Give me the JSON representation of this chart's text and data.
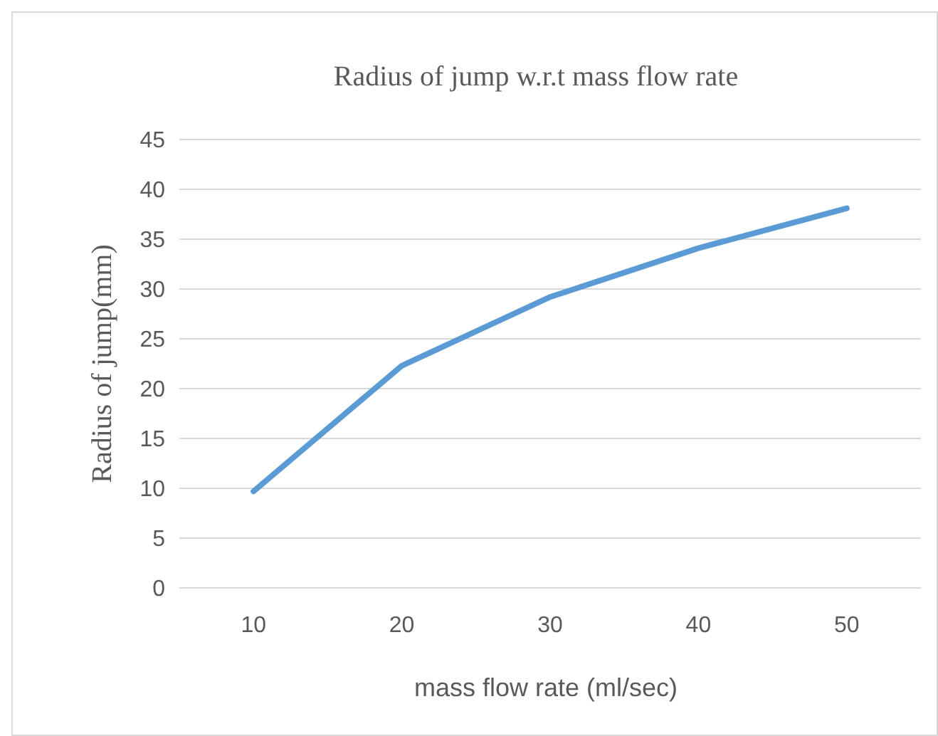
{
  "chart_data": {
    "type": "line",
    "title": "Radius of jump w.r.t mass flow rate",
    "xlabel": "mass flow rate (ml/sec)",
    "ylabel": "Radius of jump(mm)",
    "categories": [
      "10",
      "20",
      "30",
      "40",
      "50"
    ],
    "series": [
      {
        "color": "#5b9bd5",
        "values": [
          9.7,
          22.3,
          29.2,
          34.1,
          38.1
        ]
      }
    ],
    "ylim": [
      0,
      45
    ],
    "yticks": [
      0,
      5,
      10,
      15,
      20,
      25,
      30,
      35,
      40,
      45
    ],
    "grid": "y",
    "marker": "none",
    "line_style": "solid"
  }
}
